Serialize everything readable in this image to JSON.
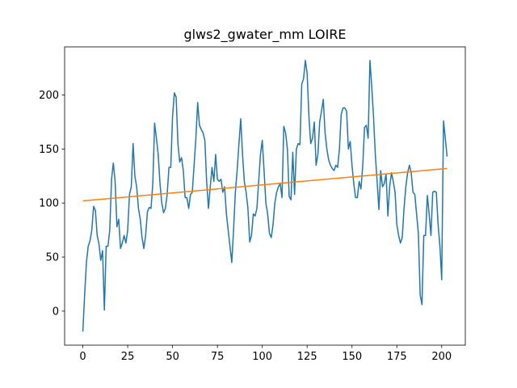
{
  "chart_data": {
    "type": "line",
    "title": "glws2_gwater_mm LOIRE",
    "xlim": [
      -10.15,
      213.15
    ],
    "xticks": [
      0,
      25,
      50,
      75,
      100,
      125,
      150,
      175,
      200
    ],
    "ylim": [
      -31.5,
      244.5
    ],
    "yticks": [
      0,
      50,
      100,
      150,
      200
    ],
    "grid": false,
    "series": [
      {
        "color": "#1f77b4",
        "x": [
          0,
          1,
          2,
          3,
          4,
          5,
          6,
          7,
          8,
          9,
          10,
          11,
          12,
          13,
          14,
          15,
          16,
          17,
          18,
          19,
          20,
          21,
          22,
          23,
          24,
          25,
          26,
          27,
          28,
          29,
          30,
          31,
          32,
          33,
          34,
          35,
          36,
          37,
          38,
          39,
          40,
          41,
          42,
          43,
          44,
          45,
          46,
          47,
          48,
          49,
          50,
          51,
          52,
          53,
          54,
          55,
          56,
          57,
          58,
          59,
          60,
          61,
          62,
          63,
          64,
          65,
          66,
          67,
          68,
          69,
          70,
          71,
          72,
          73,
          74,
          75,
          76,
          77,
          78,
          79,
          80,
          81,
          82,
          83,
          84,
          85,
          86,
          87,
          88,
          89,
          90,
          91,
          92,
          93,
          94,
          95,
          96,
          97,
          98,
          99,
          100,
          101,
          102,
          103,
          104,
          105,
          106,
          107,
          108,
          109,
          110,
          111,
          112,
          113,
          114,
          115,
          116,
          117,
          118,
          119,
          120,
          121,
          122,
          123,
          124,
          125,
          126,
          127,
          128,
          129,
          130,
          131,
          132,
          133,
          134,
          135,
          136,
          137,
          138,
          139,
          140,
          141,
          142,
          143,
          144,
          145,
          146,
          147,
          148,
          149,
          150,
          151,
          152,
          153,
          154,
          155,
          156,
          157,
          158,
          159,
          160,
          161,
          162,
          163,
          164,
          165,
          166,
          167,
          168,
          169,
          170,
          171,
          172,
          173,
          174,
          175,
          176,
          177,
          178,
          179,
          180,
          181,
          182,
          183,
          184,
          185,
          186,
          187,
          188,
          189,
          190,
          191,
          192,
          193,
          194,
          195,
          196,
          197,
          198,
          199,
          200,
          201,
          202,
          203
        ],
        "values": [
          -19,
          15,
          45,
          60,
          65,
          75,
          97,
          93,
          70,
          62,
          47,
          56,
          1,
          60,
          60,
          75,
          122,
          137,
          120,
          78,
          85,
          58,
          63,
          70,
          63,
          75,
          108,
          115,
          155,
          125,
          115,
          95,
          85,
          68,
          58,
          70,
          92,
          96,
          95,
          118,
          174,
          160,
          145,
          118,
          100,
          91,
          95,
          108,
          133,
          133,
          180,
          202,
          198,
          155,
          138,
          142,
          130,
          105,
          105,
          95,
          108,
          110,
          135,
          160,
          193,
          172,
          168,
          165,
          158,
          120,
          95,
          115,
          133,
          120,
          145,
          122,
          120,
          122,
          110,
          115,
          90,
          75,
          60,
          45,
          75,
          110,
          130,
          155,
          178,
          145,
          120,
          110,
          95,
          64,
          70,
          90,
          88,
          95,
          120,
          145,
          158,
          130,
          100,
          90,
          72,
          68,
          80,
          100,
          110,
          115,
          118,
          105,
          171,
          165,
          150,
          106,
          103,
          147,
          108,
          150,
          155,
          154,
          210,
          215,
          232,
          220,
          180,
          155,
          160,
          175,
          135,
          145,
          175,
          185,
          196,
          165,
          150,
          140,
          135,
          132,
          130,
          135,
          133,
          150,
          182,
          188,
          188,
          185,
          150,
          157,
          135,
          118,
          105,
          105,
          120,
          113,
          135,
          170,
          172,
          160,
          232,
          208,
          180,
          145,
          120,
          94,
          130,
          115,
          118,
          127,
          88,
          115,
          128,
          120,
          110,
          80,
          70,
          63,
          68,
          95,
          115,
          128,
          135,
          128,
          110,
          108,
          90,
          72,
          15,
          6,
          70,
          70,
          107,
          90,
          70,
          110,
          111,
          110,
          80,
          60,
          29,
          176,
          160,
          143
        ]
      },
      {
        "color": "#ff7f0e",
        "x": [
          0,
          203
        ],
        "values": [
          102,
          132
        ]
      }
    ]
  }
}
